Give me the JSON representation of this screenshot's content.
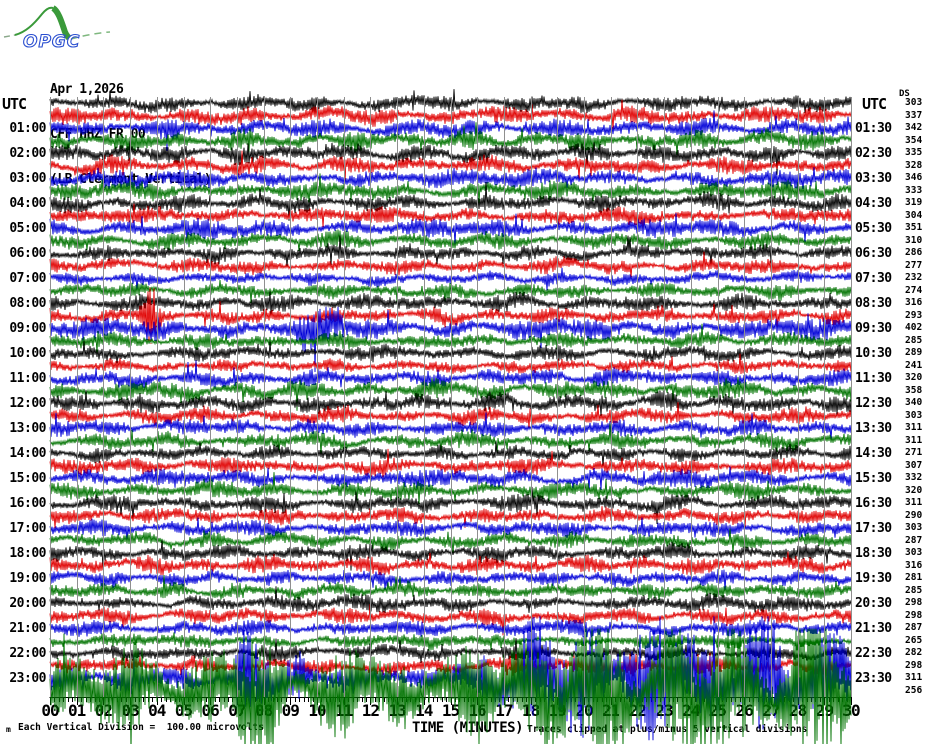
{
  "header": {
    "logo_text": "OPGC",
    "date": "Apr 1,2026",
    "station": "CFF HHZ FR 00",
    "station_desc": "(LB Clermont Vertical)"
  },
  "left_axis": {
    "title": "UTC",
    "labels": [
      "01:00",
      "02:00",
      "03:00",
      "04:00",
      "05:00",
      "06:00",
      "07:00",
      "08:00",
      "09:00",
      "10:00",
      "11:00",
      "12:00",
      "13:00",
      "14:00",
      "15:00",
      "16:00",
      "17:00",
      "18:00",
      "19:00",
      "20:00",
      "21:00",
      "22:00",
      "23:00"
    ]
  },
  "right_axis": {
    "title": "UTC",
    "amp_header": "DS",
    "labels": [
      "01:30",
      "02:30",
      "03:30",
      "04:30",
      "05:30",
      "06:30",
      "07:30",
      "08:30",
      "09:30",
      "10:30",
      "11:30",
      "12:30",
      "13:30",
      "14:30",
      "15:30",
      "16:30",
      "17:30",
      "18:30",
      "19:30",
      "20:30",
      "21:30",
      "22:30",
      "23:30"
    ]
  },
  "x_axis": {
    "title": "TIME (MINUTES)",
    "labels": [
      "00",
      "01",
      "02",
      "03",
      "04",
      "05",
      "06",
      "07",
      "08",
      "09",
      "10",
      "11",
      "12",
      "13",
      "14",
      "15",
      "16",
      "17",
      "18",
      "19",
      "20",
      "21",
      "22",
      "23",
      "24",
      "25",
      "26",
      "27",
      "28",
      "29",
      "30"
    ]
  },
  "footer": {
    "corner_mark": "m",
    "scale_note": "Each Vertical Division =  100.00 microvolts",
    "clip_note": "Traces clipped at plus/minus 5 vertical divisions"
  },
  "colors": {
    "background": "#ffffff",
    "grid": "#8f8f8f",
    "axis": "#000000",
    "text": "#000000",
    "logo_green": "#3a9a3a",
    "logo_blue": "#2b4fd0",
    "traces": {
      "black": "#000000",
      "red": "#e00000",
      "blue": "#0000d8",
      "green": "#007300"
    }
  },
  "chart_data": {
    "type": "line",
    "subtype": "helicorder-seismogram",
    "title": "CFF HHZ FR 00 (LB Clermont Vertical) Apr 1,2026",
    "xlabel": "TIME (MINUTES)",
    "x_range_minutes": [
      0,
      30
    ],
    "minutes_per_line": 30,
    "lines": 48,
    "vertical_division_microvolts": 100.0,
    "clip_divisions": 5,
    "grid": "on",
    "rows": [
      {
        "start": "00:00",
        "color": "black",
        "amp": 303
      },
      {
        "start": "00:30",
        "color": "red",
        "amp": 337
      },
      {
        "start": "01:00",
        "color": "blue",
        "amp": 342
      },
      {
        "start": "01:30",
        "color": "green",
        "amp": 354
      },
      {
        "start": "02:00",
        "color": "black",
        "amp": 335
      },
      {
        "start": "02:30",
        "color": "red",
        "amp": 328
      },
      {
        "start": "03:00",
        "color": "blue",
        "amp": 346
      },
      {
        "start": "03:30",
        "color": "green",
        "amp": 333
      },
      {
        "start": "04:00",
        "color": "black",
        "amp": 319
      },
      {
        "start": "04:30",
        "color": "red",
        "amp": 304
      },
      {
        "start": "05:00",
        "color": "blue",
        "amp": 351
      },
      {
        "start": "05:30",
        "color": "green",
        "amp": 310
      },
      {
        "start": "06:00",
        "color": "black",
        "amp": 286
      },
      {
        "start": "06:30",
        "color": "red",
        "amp": 277
      },
      {
        "start": "07:00",
        "color": "blue",
        "amp": 232
      },
      {
        "start": "07:30",
        "color": "green",
        "amp": 274
      },
      {
        "start": "08:00",
        "color": "black",
        "amp": 316
      },
      {
        "start": "08:30",
        "color": "red",
        "amp": 293
      },
      {
        "start": "09:00",
        "color": "blue",
        "amp": 402
      },
      {
        "start": "09:30",
        "color": "green",
        "amp": 285
      },
      {
        "start": "10:00",
        "color": "black",
        "amp": 289
      },
      {
        "start": "10:30",
        "color": "red",
        "amp": 241
      },
      {
        "start": "11:00",
        "color": "blue",
        "amp": 320
      },
      {
        "start": "11:30",
        "color": "green",
        "amp": 358
      },
      {
        "start": "12:00",
        "color": "black",
        "amp": 340
      },
      {
        "start": "12:30",
        "color": "red",
        "amp": 303
      },
      {
        "start": "13:00",
        "color": "blue",
        "amp": 311
      },
      {
        "start": "13:30",
        "color": "green",
        "amp": 311
      },
      {
        "start": "14:00",
        "color": "black",
        "amp": 271
      },
      {
        "start": "14:30",
        "color": "red",
        "amp": 307
      },
      {
        "start": "15:00",
        "color": "blue",
        "amp": 332
      },
      {
        "start": "15:30",
        "color": "green",
        "amp": 320
      },
      {
        "start": "16:00",
        "color": "black",
        "amp": 311
      },
      {
        "start": "16:30",
        "color": "red",
        "amp": 290
      },
      {
        "start": "17:00",
        "color": "blue",
        "amp": 303
      },
      {
        "start": "17:30",
        "color": "green",
        "amp": 287
      },
      {
        "start": "18:00",
        "color": "black",
        "amp": 303
      },
      {
        "start": "18:30",
        "color": "red",
        "amp": 316
      },
      {
        "start": "19:00",
        "color": "blue",
        "amp": 281
      },
      {
        "start": "19:30",
        "color": "green",
        "amp": 285
      },
      {
        "start": "20:00",
        "color": "black",
        "amp": 298
      },
      {
        "start": "20:30",
        "color": "red",
        "amp": 298
      },
      {
        "start": "21:00",
        "color": "blue",
        "amp": 287
      },
      {
        "start": "21:30",
        "color": "green",
        "amp": 265
      },
      {
        "start": "22:00",
        "color": "black",
        "amp": 282
      },
      {
        "start": "22:30",
        "color": "red",
        "amp": 298
      },
      {
        "start": "23:00",
        "color": "blue",
        "amp": 311
      },
      {
        "start": "23:30",
        "color": "green",
        "amp": 256
      }
    ],
    "events": [
      {
        "line": "08:30",
        "start_min": 3.55,
        "end_min": 3.95,
        "gain": 4.5
      },
      {
        "line": "09:00",
        "start_min": 9.3,
        "end_min": 11.0,
        "gain": 2.0
      },
      {
        "line": "22:30",
        "start_min": 17.0,
        "end_min": 26.0,
        "gain": 1.5
      },
      {
        "line": "23:00",
        "start_min": 0.0,
        "end_min": 30.0,
        "gain": 1.7
      },
      {
        "line": "23:00",
        "start_min": 7.0,
        "end_min": 9.6,
        "gain": 4.5
      },
      {
        "line": "23:00",
        "start_min": 16.2,
        "end_min": 30.0,
        "gain": 7.0
      },
      {
        "line": "23:30",
        "start_min": 0.0,
        "end_min": 30.0,
        "gain": 6.5
      },
      {
        "line": "23:30",
        "start_min": 6.8,
        "end_min": 8.8,
        "gain": 11.0
      },
      {
        "line": "23:30",
        "start_min": 16.8,
        "end_min": 30.0,
        "gain": 11.0
      }
    ]
  }
}
